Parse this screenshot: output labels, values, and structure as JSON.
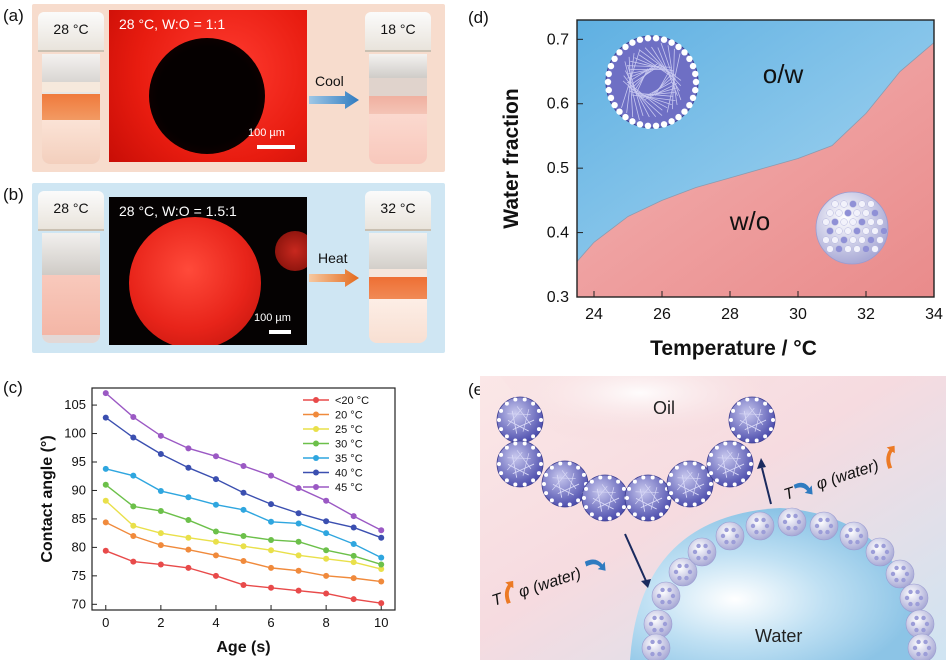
{
  "panels": {
    "a": {
      "label": "(a)",
      "vial_left_temp": "28 °C",
      "micro_title": "28 °C, W:O = 1:1",
      "scale": "100 µm",
      "arrow_label": "Cool",
      "vial_right_temp": "18 °C"
    },
    "b": {
      "label": "(b)",
      "vial_left_temp": "28 °C",
      "micro_title": "28 °C, W:O = 1.5:1",
      "scale": "100 µm",
      "arrow_label": "Heat",
      "vial_right_temp": "32 °C"
    },
    "c": {
      "label": "(c)"
    },
    "d": {
      "label": "(d)",
      "region_upper": "o/w",
      "region_lower": "w/o"
    },
    "e": {
      "label": "(e)",
      "oil": "Oil",
      "water": "Water",
      "t_symbol": "T",
      "phi_water": "φ (water)"
    }
  },
  "colors": {
    "panel_a_bg": "#f7dccd",
    "panel_b_bg": "#cfe6f3",
    "ow_region": "#7cc1e8",
    "wo_region": "#f0a4a4",
    "arrow_cool": "#3a86c8",
    "arrow_heat": "#e8792b"
  },
  "chart_data": [
    {
      "type": "line",
      "panel": "c",
      "xlabel": "Age (s)",
      "ylabel": "Contact angle (°)",
      "xlim": [
        -0.5,
        10.5
      ],
      "ylim": [
        69,
        108
      ],
      "xticks": [
        0,
        2,
        4,
        6,
        8,
        10
      ],
      "yticks": [
        70,
        75,
        80,
        85,
        90,
        95,
        100,
        105
      ],
      "legend_position": "top-right",
      "x": [
        0,
        1,
        2,
        3,
        4,
        5,
        6,
        7,
        8,
        9,
        10
      ],
      "series": [
        {
          "name": "<20 °C",
          "color": "#e84a4a",
          "values": [
            79.4,
            77.5,
            77.0,
            76.4,
            75.0,
            73.4,
            72.9,
            72.4,
            71.9,
            70.9,
            70.2
          ]
        },
        {
          "name": "20 °C",
          "color": "#f08a3c",
          "values": [
            84.4,
            82.0,
            80.4,
            79.6,
            78.6,
            77.6,
            76.4,
            75.9,
            75.0,
            74.6,
            74.0
          ]
        },
        {
          "name": "25 °C",
          "color": "#e9e04a",
          "values": [
            88.2,
            83.8,
            82.5,
            81.7,
            81.0,
            80.2,
            79.5,
            78.6,
            78.0,
            77.4,
            76.2
          ]
        },
        {
          "name": "30 °C",
          "color": "#6cc04a",
          "values": [
            91.0,
            87.2,
            86.4,
            84.8,
            82.8,
            82.0,
            81.3,
            81.0,
            79.5,
            78.5,
            77.0
          ]
        },
        {
          "name": "35 °C",
          "color": "#2fa6df",
          "values": [
            93.8,
            92.6,
            89.9,
            88.8,
            87.5,
            86.6,
            84.5,
            84.2,
            82.5,
            80.6,
            78.2
          ]
        },
        {
          "name": "40 °C",
          "color": "#3b4fb0",
          "values": [
            102.8,
            99.3,
            96.4,
            94.0,
            92.0,
            89.6,
            87.6,
            86.0,
            84.6,
            83.5,
            81.7
          ]
        },
        {
          "name": "45 °C",
          "color": "#9b59c4",
          "values": [
            107.1,
            102.9,
            99.6,
            97.4,
            96.0,
            94.3,
            92.6,
            90.4,
            88.2,
            85.5,
            83.0
          ]
        }
      ]
    },
    {
      "type": "area",
      "panel": "d",
      "xlabel": "Temperature / °C",
      "ylabel": "Water fraction",
      "xlim": [
        23.5,
        34
      ],
      "ylim": [
        0.3,
        0.73
      ],
      "xticks": [
        24,
        26,
        28,
        30,
        32,
        34
      ],
      "yticks": [
        0.3,
        0.4,
        0.5,
        0.6,
        0.7
      ],
      "boundary": {
        "x": [
          23.5,
          24,
          25,
          26,
          27,
          28,
          29,
          30,
          31,
          32,
          33,
          34
        ],
        "y": [
          0.355,
          0.385,
          0.425,
          0.45,
          0.47,
          0.485,
          0.5,
          0.515,
          0.535,
          0.585,
          0.65,
          0.695
        ]
      }
    }
  ]
}
